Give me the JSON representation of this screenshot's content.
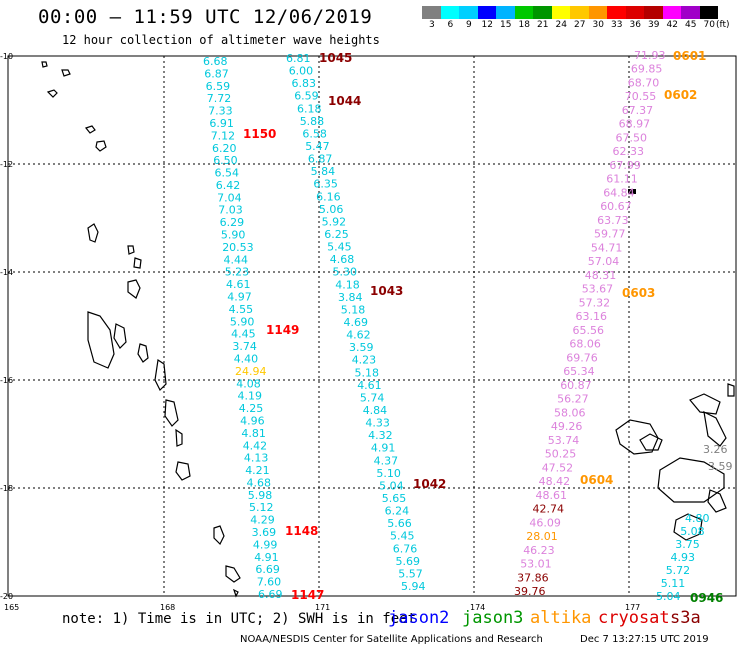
{
  "header": {
    "title": "00:00 – 11:59 UTC 12/06/2019",
    "subtitle": "12 hour collection of altimeter wave heights"
  },
  "colorbar": {
    "unit": "(ft)",
    "labels": [
      "3",
      "6",
      "9",
      "12",
      "15",
      "18",
      "21",
      "24",
      "27",
      "30",
      "33",
      "36",
      "39",
      "42",
      "45",
      "70"
    ],
    "colors": [
      "#808080",
      "#00ffff",
      "#00d0ff",
      "#0000ff",
      "#00b4ff",
      "#00c800",
      "#009600",
      "#ffff00",
      "#ffc800",
      "#ff9600",
      "#ff0000",
      "#dc0000",
      "#b40000",
      "#ff00ff",
      "#a000c8",
      "#000000"
    ]
  },
  "axes": {
    "lat_labels": [
      "-10",
      "-12",
      "-14",
      "-16",
      "-18",
      "-20"
    ],
    "lon_labels": [
      "165",
      "168",
      "171",
      "174",
      "177"
    ]
  },
  "tracks": [
    {
      "id": "t1",
      "color": "#00c8dc",
      "label_color": "#00c8dc",
      "values": [
        "6.68",
        "6.87",
        "6.59",
        "7.72",
        "7.33",
        "6.91",
        "7.12",
        "6.20",
        "6.50",
        "6.54",
        "6.42",
        "7.04",
        "7.03",
        "6.29",
        "5.90",
        "20.53",
        "4.44",
        "5.23",
        "4.61",
        "4.97",
        "4.55",
        "5.90",
        "4.45",
        "3.74",
        "4.40",
        "24.94",
        "4.08",
        "4.19",
        "4.25",
        "4.96",
        "4.81",
        "4.42",
        "4.13",
        "4.21",
        "4.68",
        "5.98",
        "5.12",
        "4.29",
        "3.69",
        "4.99",
        "4.91",
        "6.69",
        "7.60",
        "6.69"
      ]
    },
    {
      "id": "t2",
      "color": "#00c8dc",
      "values": [
        "6.81",
        "6.00",
        "6.83",
        "6.59",
        "6.18",
        "5.88",
        "6.58",
        "5.47",
        "6.87",
        "5.84",
        "6.35",
        "6.16",
        "5.06",
        "5.92",
        "6.25",
        "5.45",
        "4.68",
        "5.30",
        "4.18",
        "3.84",
        "5.18",
        "4.69",
        "4.62",
        "3.59",
        "4.23",
        "5.18",
        "4.61",
        "5.74",
        "4.84",
        "4.33",
        "4.32",
        "4.91",
        "4.37",
        "5.10",
        "5.04",
        "5.65",
        "6.24",
        "5.66",
        "5.45",
        "6.76",
        "5.69",
        "5.57",
        "5.94"
      ]
    },
    {
      "id": "t3",
      "color": "#dc82dc",
      "values": [
        "71.93",
        "69.85",
        "68.70",
        "70.55",
        "67.37",
        "68.97",
        "67.50",
        "62.33",
        "67.99",
        "61.11",
        "64.84",
        "60.67",
        "63.73",
        "59.77",
        "54.71",
        "57.04",
        "48.31",
        "53.67",
        "57.32",
        "63.16",
        "65.56",
        "68.06",
        "69.76",
        "65.34",
        "60.87",
        "56.27",
        "58.06",
        "49.26",
        "53.74",
        "50.25",
        "47.52",
        "48.42",
        "48.61",
        "42.74",
        "46.09",
        "28.01",
        "46.23",
        "53.01",
        "37.86",
        "39.76"
      ]
    },
    {
      "id": "t4",
      "color": "#00c8dc",
      "values": [
        "4.80",
        "5.08",
        "3.75",
        "4.93",
        "5.72",
        "5.11",
        "5.04"
      ]
    }
  ],
  "extra_values": [
    "3.26",
    "3.59"
  ],
  "time_labels": [
    {
      "text": "1045",
      "color": "#8b0000"
    },
    {
      "text": "1044",
      "color": "#8b0000"
    },
    {
      "text": "1150",
      "color": "#ff0000"
    },
    {
      "text": "1043",
      "color": "#8b0000"
    },
    {
      "text": "1149",
      "color": "#ff0000"
    },
    {
      "text": "1042",
      "color": "#8b0000"
    },
    {
      "text": "1148",
      "color": "#ff0000"
    },
    {
      "text": "1147",
      "color": "#ff0000"
    },
    {
      "text": "0601",
      "color": "#ff9600"
    },
    {
      "text": "0602",
      "color": "#ff9600"
    },
    {
      "text": "0603",
      "color": "#ff9600"
    },
    {
      "text": "0604",
      "color": "#ff9600"
    },
    {
      "text": "0946",
      "color": "#008000"
    }
  ],
  "note": "note: 1) Time is in UTC; 2) SWH is in feet",
  "legend": [
    {
      "text": "jason2",
      "color": "#0000ff"
    },
    {
      "text": "jason3",
      "color": "#009600"
    },
    {
      "text": "altika",
      "color": "#ff9600"
    },
    {
      "text": "cryosat",
      "color": "#dc0000"
    },
    {
      "text": "s3a",
      "color": "#8b0000"
    }
  ],
  "footer": "NOAA/NESDIS Center for Satellite Applications and Research",
  "footer_date": "Dec  7 13:27:15 UTC 2019"
}
